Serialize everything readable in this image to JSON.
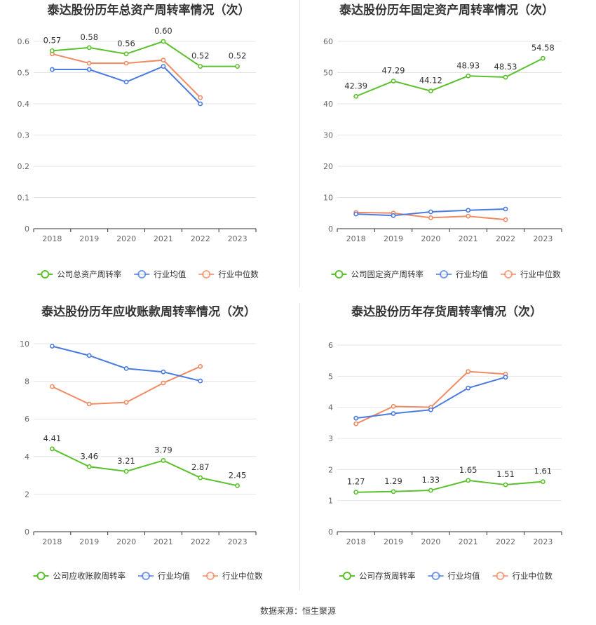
{
  "footer": "数据来源：恒生聚源",
  "chart_data": [
    {
      "type": "line",
      "title": "泰达股份历年总资产周转率情况（次）",
      "categories": [
        "2018",
        "2019",
        "2020",
        "2021",
        "2022",
        "2023"
      ],
      "ylim": [
        0,
        0.6
      ],
      "yticks": [
        "0",
        "0.1",
        "0.2",
        "0.3",
        "0.4",
        "0.5",
        "0.6"
      ],
      "ytick_values": [
        0,
        0.1,
        0.2,
        0.3,
        0.4,
        0.5,
        0.6
      ],
      "legend_position": "bottom",
      "grid": true,
      "series": [
        {
          "name": "公司总资产周转率",
          "color": "#5bc12d",
          "values": [
            0.57,
            0.58,
            0.56,
            0.6,
            0.52,
            0.52
          ],
          "labels": [
            "0.57",
            "0.58",
            "0.56",
            "0.60",
            "0.52",
            "0.52"
          ]
        },
        {
          "name": "行业均值",
          "color": "#4a7be0",
          "values": [
            0.51,
            0.51,
            0.47,
            0.52,
            0.4,
            null
          ]
        },
        {
          "name": "行业中位数",
          "color": "#f08a62",
          "values": [
            0.56,
            0.53,
            0.53,
            0.54,
            0.42,
            null
          ]
        }
      ]
    },
    {
      "type": "line",
      "title": "泰达股份历年固定资产周转率情况（次）",
      "categories": [
        "2018",
        "2019",
        "2020",
        "2021",
        "2022",
        "2023"
      ],
      "ylim": [
        0,
        60
      ],
      "yticks": [
        "0",
        "10",
        "20",
        "30",
        "40",
        "50",
        "60"
      ],
      "ytick_values": [
        0,
        10,
        20,
        30,
        40,
        50,
        60
      ],
      "legend_position": "bottom",
      "grid": true,
      "series": [
        {
          "name": "公司固定资产周转率",
          "color": "#5bc12d",
          "values": [
            42.39,
            47.29,
            44.12,
            48.93,
            48.53,
            54.58
          ],
          "labels": [
            "42.39",
            "47.29",
            "44.12",
            "48.93",
            "48.53",
            "54.58"
          ]
        },
        {
          "name": "行业均值",
          "color": "#4a7be0",
          "values": [
            4.7,
            4.2,
            5.4,
            5.9,
            6.3,
            null
          ]
        },
        {
          "name": "行业中位数",
          "color": "#f08a62",
          "values": [
            5.2,
            5.0,
            3.5,
            4.0,
            2.9,
            null
          ]
        }
      ]
    },
    {
      "type": "line",
      "title": "泰达股份历年应收账款周转率情况（次）",
      "categories": [
        "2018",
        "2019",
        "2020",
        "2021",
        "2022",
        "2023"
      ],
      "ylim": [
        0,
        10
      ],
      "yticks": [
        "0",
        "2",
        "4",
        "6",
        "8",
        "10"
      ],
      "ytick_values": [
        0,
        2,
        4,
        6,
        8,
        10
      ],
      "legend_position": "bottom",
      "grid": true,
      "series": [
        {
          "name": "公司应收账款周转率",
          "color": "#5bc12d",
          "values": [
            4.41,
            3.46,
            3.21,
            3.79,
            2.87,
            2.45
          ],
          "labels": [
            "4.41",
            "3.46",
            "3.21",
            "3.79",
            "2.87",
            "2.45"
          ]
        },
        {
          "name": "行业均值",
          "color": "#4a7be0",
          "values": [
            9.87,
            9.37,
            8.68,
            8.5,
            8.02,
            null
          ]
        },
        {
          "name": "行业中位数",
          "color": "#f08a62",
          "values": [
            7.72,
            6.79,
            6.88,
            7.91,
            8.79,
            null
          ]
        }
      ]
    },
    {
      "type": "line",
      "title": "泰达股份历年存货周转率情况（次）",
      "categories": [
        "2018",
        "2019",
        "2020",
        "2021",
        "2022",
        "2023"
      ],
      "ylim": [
        0,
        6
      ],
      "yticks": [
        "0",
        "1",
        "2",
        "3",
        "4",
        "5",
        "6"
      ],
      "ytick_values": [
        0,
        1,
        2,
        3,
        4,
        5,
        6
      ],
      "legend_position": "bottom",
      "grid": true,
      "series": [
        {
          "name": "公司存货周转率",
          "color": "#5bc12d",
          "values": [
            1.27,
            1.29,
            1.33,
            1.65,
            1.51,
            1.61
          ],
          "labels": [
            "1.27",
            "1.29",
            "1.33",
            "1.65",
            "1.51",
            "1.61"
          ]
        },
        {
          "name": "行业均值",
          "color": "#4a7be0",
          "values": [
            3.65,
            3.8,
            3.92,
            4.62,
            4.97,
            null
          ]
        },
        {
          "name": "行业中位数",
          "color": "#f08a62",
          "values": [
            3.47,
            4.03,
            4.0,
            5.15,
            5.07,
            null
          ]
        }
      ]
    }
  ]
}
